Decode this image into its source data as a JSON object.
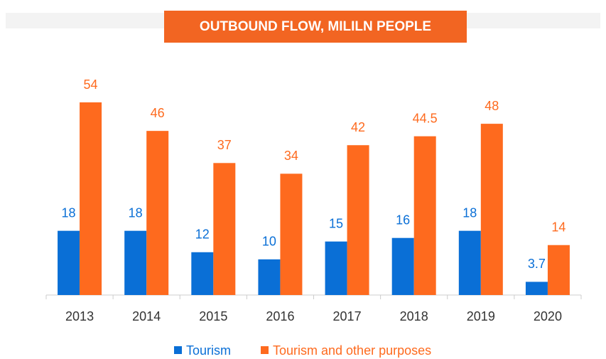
{
  "chart_data": {
    "type": "bar",
    "title": "OUTBOUND FLOW, MILILN PEOPLE",
    "categories": [
      "2013",
      "2014",
      "2015",
      "2016",
      "2017",
      "2018",
      "2019",
      "2020"
    ],
    "series": [
      {
        "name": "Tourism",
        "color": "#0a6fd6",
        "values": [
          18,
          18,
          12,
          10,
          15,
          16,
          18,
          3.7
        ]
      },
      {
        "name": "Tourism and other purposes",
        "color": "#fe6a1e",
        "values": [
          54,
          46,
          37,
          34,
          42,
          44.5,
          48,
          14
        ]
      }
    ],
    "ylim": [
      0,
      54
    ]
  }
}
